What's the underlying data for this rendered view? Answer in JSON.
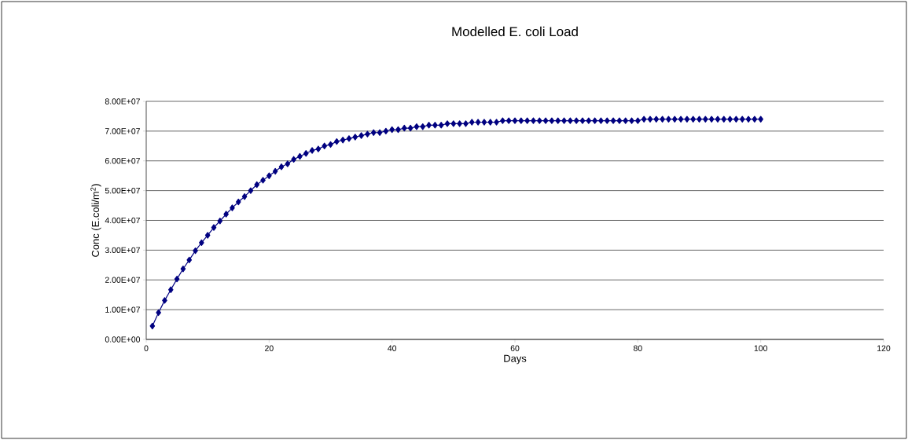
{
  "chart_data": {
    "type": "line",
    "title": "Modelled E. coli Load",
    "xlabel": "Days",
    "ylabel": "Conc (E.coli/m$^{2}$)",
    "x": [
      1,
      2,
      3,
      4,
      5,
      6,
      7,
      8,
      9,
      10,
      11,
      12,
      13,
      14,
      15,
      16,
      17,
      18,
      19,
      20,
      21,
      22,
      23,
      24,
      25,
      26,
      27,
      28,
      29,
      30,
      31,
      32,
      33,
      34,
      35,
      36,
      37,
      38,
      39,
      40,
      41,
      42,
      43,
      44,
      45,
      46,
      47,
      48,
      49,
      50,
      51,
      52,
      53,
      54,
      55,
      56,
      57,
      58,
      59,
      60,
      61,
      62,
      63,
      64,
      65,
      66,
      67,
      68,
      69,
      70,
      71,
      72,
      73,
      74,
      75,
      76,
      77,
      78,
      79,
      80,
      81,
      82,
      83,
      84,
      85,
      86,
      87,
      88,
      89,
      90,
      91,
      92,
      93,
      94,
      95,
      96,
      97,
      98,
      99,
      100
    ],
    "series": [
      {
        "color": "#000080",
        "values": [
          4500000,
          9000000,
          13100000,
          16700000,
          20300000,
          23700000,
          26700000,
          29800000,
          32500000,
          35000000,
          37600000,
          39800000,
          42100000,
          44200000,
          46200000,
          48000000,
          50000000,
          52000000,
          53500000,
          55000000,
          56500000,
          58000000,
          59000000,
          60500000,
          61500000,
          62500000,
          63500000,
          64000000,
          65000000,
          65500000,
          66500000,
          67000000,
          67500000,
          68000000,
          68500000,
          69000000,
          69500000,
          69500000,
          70000000,
          70500000,
          70500000,
          71000000,
          71000000,
          71500000,
          71500000,
          72000000,
          72000000,
          72000000,
          72500000,
          72500000,
          72500000,
          72500000,
          73000000,
          73000000,
          73000000,
          73000000,
          73000000,
          73500000,
          73500000,
          73500000,
          73500000,
          73500000,
          73500000,
          73500000,
          73500000,
          73500000,
          73500000,
          73500000,
          73500000,
          73500000,
          73500000,
          73500000,
          73500000,
          73500000,
          73500000,
          73500000,
          73500000,
          73500000,
          73500000,
          73500000,
          74000000,
          74000000,
          74000000,
          74000000,
          74000000,
          74000000,
          74000000,
          74000000,
          74000000,
          74000000,
          74000000,
          74000000,
          74000000,
          74000000,
          74000000,
          74000000,
          74000000,
          74000000,
          74000000,
          74000000
        ]
      }
    ],
    "xlim": [
      0,
      120
    ],
    "xticks": [
      0,
      20,
      40,
      60,
      80,
      100,
      120
    ],
    "ylim": [
      0,
      80000000
    ],
    "yticks": [
      {
        "value": 0,
        "label": "0.00E+00"
      },
      {
        "value": 10000000,
        "label": "1.00E+07"
      },
      {
        "value": 20000000,
        "label": "2.00E+07"
      },
      {
        "value": 30000000,
        "label": "3.00E+07"
      },
      {
        "value": 40000000,
        "label": "4.00E+07"
      },
      {
        "value": 50000000,
        "label": "5.00E+07"
      },
      {
        "value": 60000000,
        "label": "6.00E+07"
      },
      {
        "value": 70000000,
        "label": "7.00E+07"
      },
      {
        "value": 80000000,
        "label": "8.00E+07"
      }
    ],
    "grid": "y",
    "marker": "diamond",
    "line_style": "solid"
  }
}
